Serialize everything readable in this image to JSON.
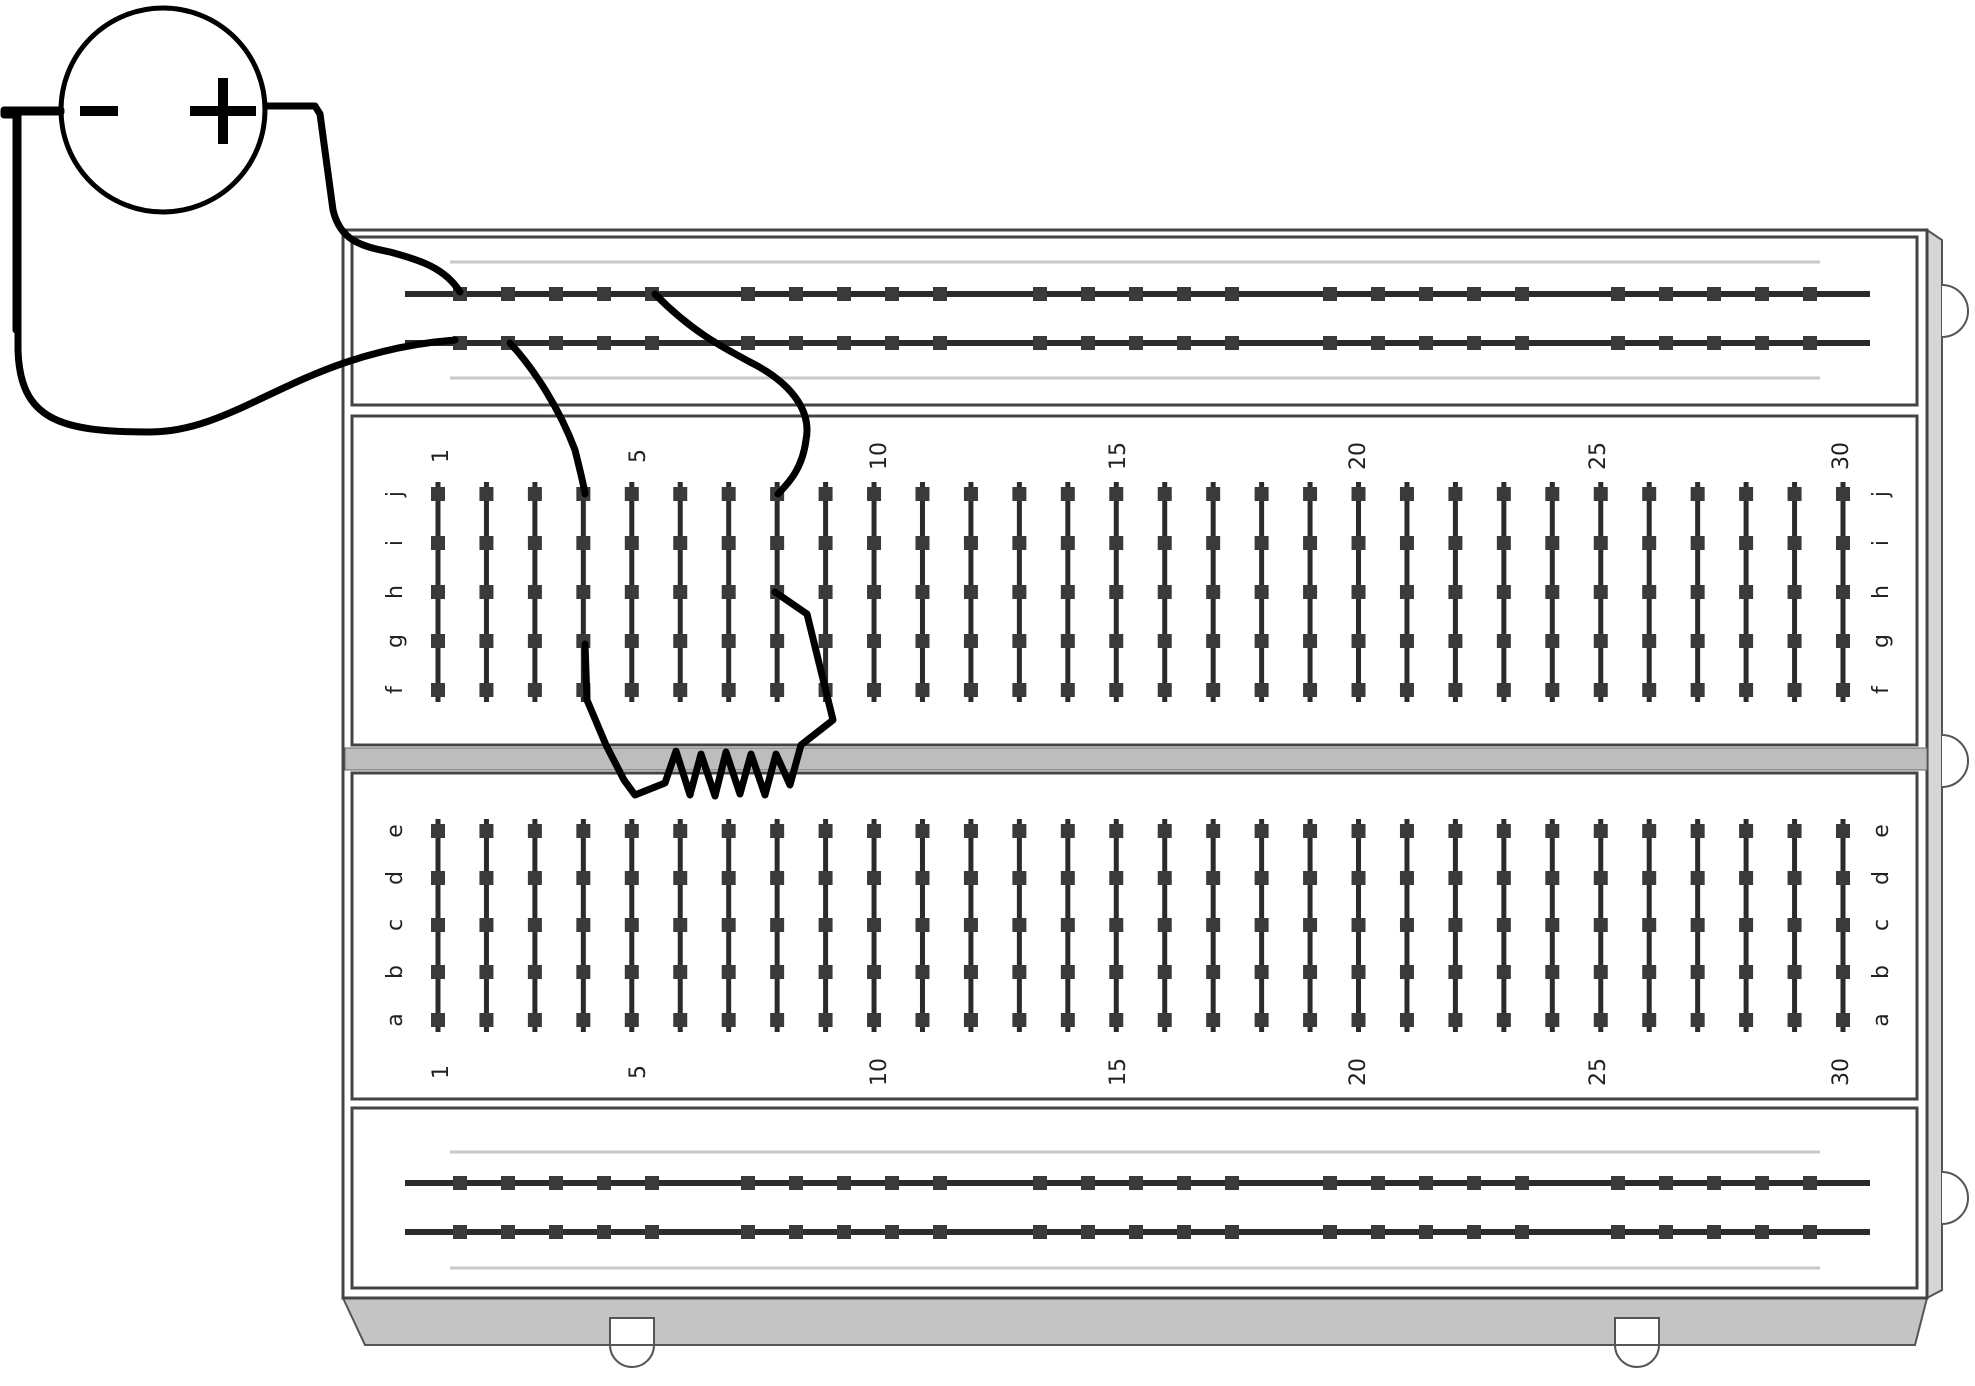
{
  "battery": {
    "negative_symbol": "-",
    "positive_symbol": "+"
  },
  "breadboard": {
    "columns": 30,
    "top_row_letters": [
      "f",
      "g",
      "h",
      "i",
      "j"
    ],
    "bottom_row_letters": [
      "a",
      "b",
      "c",
      "d",
      "e"
    ],
    "column_numbers": [
      "1",
      "5",
      "10",
      "15",
      "20",
      "25",
      "30"
    ]
  },
  "colors": {
    "wire": "#000000",
    "board_fill": "#ffffff",
    "board_outline": "#444444",
    "hole": "#3a3a3a",
    "rail_line": "#2b2b2b",
    "rail_guide": "#c8c8c8",
    "board_shadow": "#bdbdbd"
  }
}
